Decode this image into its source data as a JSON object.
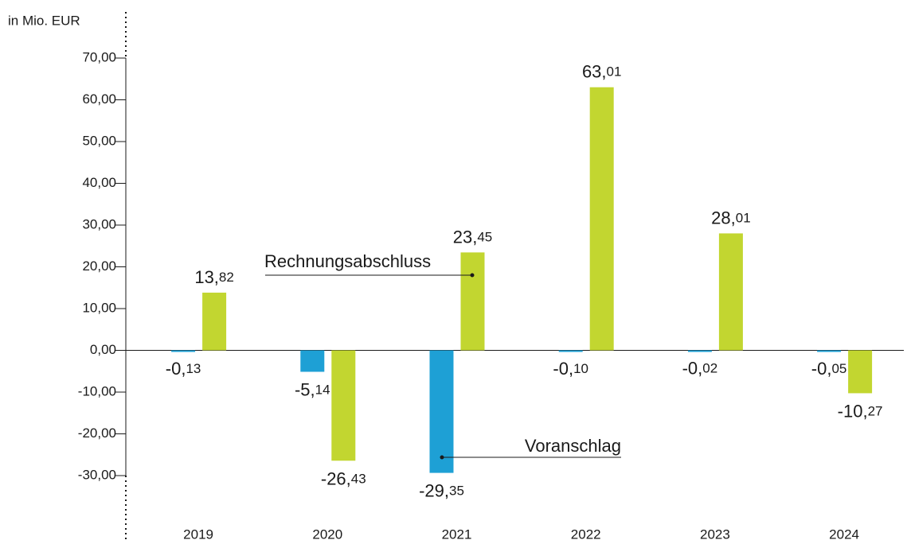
{
  "chart_data": {
    "type": "bar",
    "y_axis_label": "in Mio. EUR",
    "categories": [
      "2019",
      "2020",
      "2021",
      "2022",
      "2023",
      "2024"
    ],
    "series": [
      {
        "name": "Voranschlag",
        "color": "#1ea0d5",
        "values": [
          -0.13,
          -5.14,
          -29.35,
          -0.1,
          -0.02,
          -0.05
        ],
        "value_labels": [
          "-0,13",
          "-5,14",
          "-29,35",
          "-0,10",
          "-0,02",
          "-0,05"
        ]
      },
      {
        "name": "Rechnungsabschluss",
        "color": "#c2d630",
        "values": [
          13.82,
          -26.43,
          23.45,
          63.01,
          28.01,
          -10.27
        ],
        "value_labels": [
          "13,82",
          "-26,43",
          "23,45",
          "63,01",
          "28,01",
          "-10,27"
        ]
      }
    ],
    "ylim": [
      -30,
      70
    ],
    "yticks": [
      {
        "value": 70,
        "label": "70,00"
      },
      {
        "value": 60,
        "label": "60,00"
      },
      {
        "value": 50,
        "label": "50,00"
      },
      {
        "value": 40,
        "label": "40,00"
      },
      {
        "value": 30,
        "label": "30,00"
      },
      {
        "value": 20,
        "label": "20,00"
      },
      {
        "value": 10,
        "label": "10,00"
      },
      {
        "value": 0,
        "label": "0,00"
      },
      {
        "value": -10,
        "label": "-10,00"
      },
      {
        "value": -20,
        "label": "-20,00"
      },
      {
        "value": -30,
        "label": "-30,00"
      }
    ],
    "grid": false
  }
}
